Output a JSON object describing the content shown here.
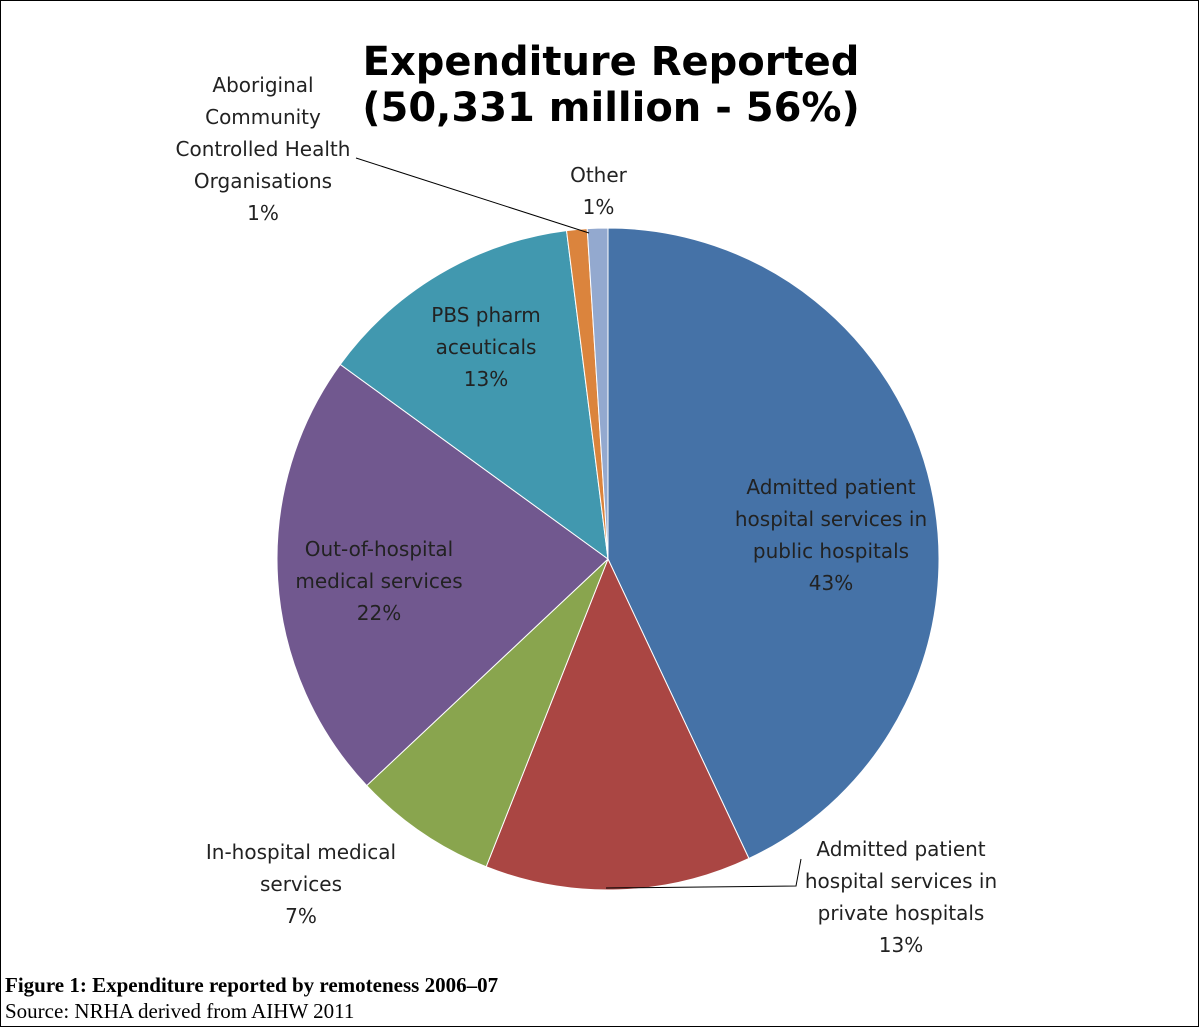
{
  "chart_data": {
    "type": "pie",
    "title": "Expenditure Reported (50,331 million - 56%)",
    "categories": [
      "Admitted patient hospital services in public hospitals",
      "Admitted patient hospital services in private hospitals",
      "In-hospital medical services",
      "Out-of-hospital medical services",
      "PBS pharmaceuticals",
      "Aboriginal Community Controlled Health Organisations",
      "Other"
    ],
    "values": [
      43,
      13,
      7,
      22,
      13,
      1,
      1
    ],
    "value_labels": [
      "43%",
      "13%",
      "7%",
      "22%",
      "13%",
      "1%",
      "1%"
    ],
    "colors": [
      "#4572a7",
      "#aa4643",
      "#89a54e",
      "#71588f",
      "#4198af",
      "#db843d",
      "#93a9cf"
    ],
    "caption": "Figure 1: Expenditure reported by remoteness 2006–07",
    "source": "Source: NRHA derived from AIHW 2011"
  }
}
